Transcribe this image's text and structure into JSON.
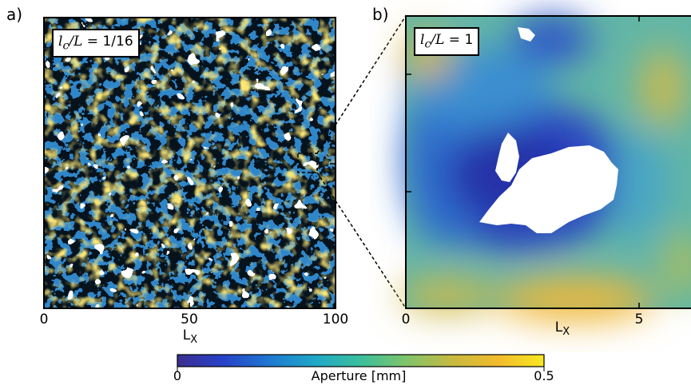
{
  "panels": [
    {
      "label": "a)",
      "annotation": {
        "lhs": "l",
        "lhs_sub": "c",
        "mid": "/L = ",
        "rhs": "1/16"
      },
      "x_ticks": [
        "0",
        "50",
        "100"
      ],
      "xlabel": "L",
      "xlabel_sub": "X"
    },
    {
      "label": "b)",
      "annotation": {
        "lhs": "l",
        "lhs_sub": "c",
        "mid": "/L = ",
        "rhs": "1"
      },
      "x_ticks": [
        "0",
        "5"
      ],
      "xlabel": "L",
      "xlabel_sub": "X"
    }
  ],
  "colorbar": {
    "label": "Aperture [mm]",
    "min_label": "0",
    "max_label": "0.5",
    "colormap": [
      "#3b2f8f",
      "#2742c9",
      "#1f78d1",
      "#1fa8c8",
      "#3bbf9c",
      "#7fc46a",
      "#c7b940",
      "#f2bb2d",
      "#f8e820"
    ],
    "void_color": "#ffffff"
  }
}
